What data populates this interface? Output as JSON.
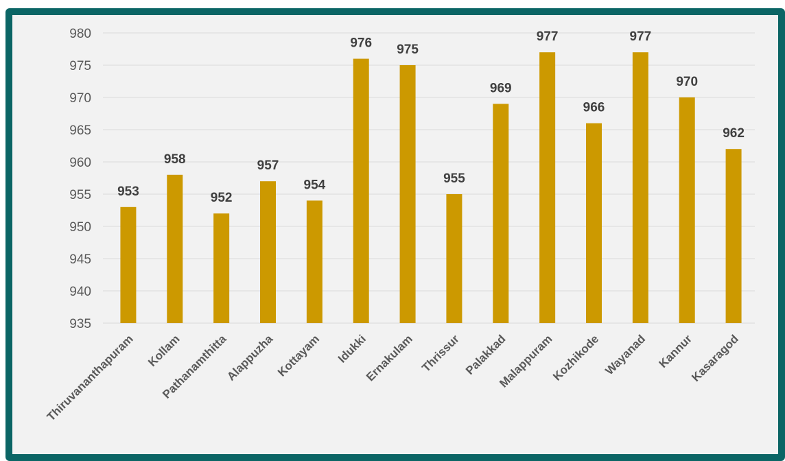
{
  "colors": {
    "frame": "#0b6565",
    "background": "#f2f2f2",
    "bar": "#cc9900",
    "grid": "#d9d9d9",
    "tick_text": "#595959",
    "label_text": "#404040"
  },
  "chart_data": {
    "type": "bar",
    "title": "",
    "xlabel": "",
    "ylabel": "",
    "ylim": [
      935,
      980
    ],
    "yticks": [
      "980",
      "975",
      "970",
      "965",
      "960",
      "955",
      "950",
      "945",
      "940",
      "935"
    ],
    "grid": true,
    "legend": "none",
    "categories": [
      "Thiruvananthapuram",
      "Kollam",
      "Pathanamthitta",
      "Alappuzha",
      "Kottayam",
      "Idukki",
      "Ernakulam",
      "Thrissur",
      "Palakkad",
      "Malappuram",
      "Kozhikode",
      "Wayanad",
      "Kannur",
      "Kasaragod"
    ],
    "values": [
      953,
      958,
      952,
      957,
      954,
      976,
      975,
      955,
      969,
      977,
      966,
      977,
      970,
      962
    ],
    "data_labels": [
      "953",
      "958",
      "952",
      "957",
      "954",
      "976",
      "975",
      "955",
      "969",
      "977",
      "966",
      "977",
      "970",
      "962"
    ]
  }
}
